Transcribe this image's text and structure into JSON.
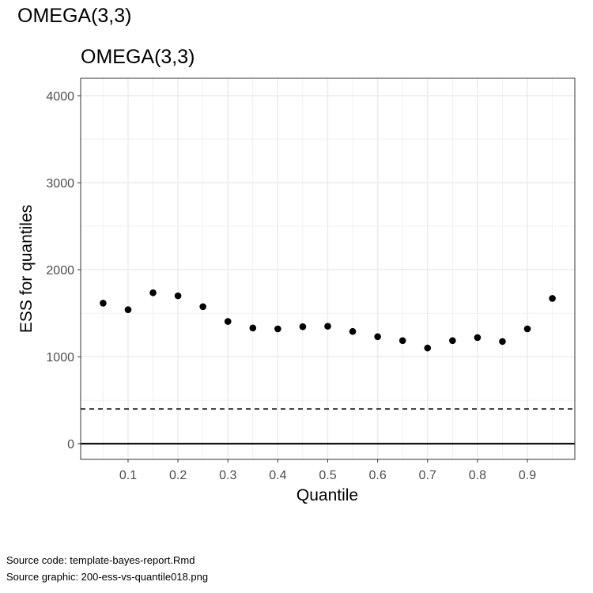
{
  "page_title": "OMEGA(3,3)",
  "footer": {
    "source_code": "Source code: template-bayes-report.Rmd",
    "source_graphic": "Source graphic: 200-ess-vs-quantile018.png"
  },
  "chart_data": {
    "type": "scatter",
    "title": "OMEGA(3,3)",
    "xlabel": "Quantile",
    "ylabel": "ESS for quantiles",
    "xlim": [
      0.005,
      0.995
    ],
    "ylim": [
      -180,
      4200
    ],
    "x_ticks": [
      0.1,
      0.2,
      0.3,
      0.4,
      0.5,
      0.6,
      0.7,
      0.8,
      0.9
    ],
    "x_tick_labels": [
      "0.1",
      "0.2",
      "0.3",
      "0.4",
      "0.5",
      "0.6",
      "0.7",
      "0.8",
      "0.9"
    ],
    "y_ticks": [
      0,
      1000,
      2000,
      3000,
      4000
    ],
    "y_tick_labels": [
      "0",
      "1000",
      "2000",
      "3000",
      "4000"
    ],
    "x": [
      0.05,
      0.1,
      0.15,
      0.2,
      0.25,
      0.3,
      0.35,
      0.4,
      0.45,
      0.5,
      0.55,
      0.6,
      0.65,
      0.7,
      0.75,
      0.8,
      0.85,
      0.9,
      0.95
    ],
    "y": [
      1615,
      1540,
      1735,
      1700,
      1575,
      1405,
      1330,
      1320,
      1345,
      1350,
      1290,
      1230,
      1185,
      1100,
      1185,
      1220,
      1175,
      1320,
      1670
    ],
    "reference_lines": [
      {
        "y": 0,
        "style": "solid"
      },
      {
        "y": 400,
        "style": "dashed"
      }
    ],
    "grid": true,
    "colors": {
      "points": "#000000",
      "grid": "#ebebeb",
      "panel_border": "#333333"
    }
  }
}
